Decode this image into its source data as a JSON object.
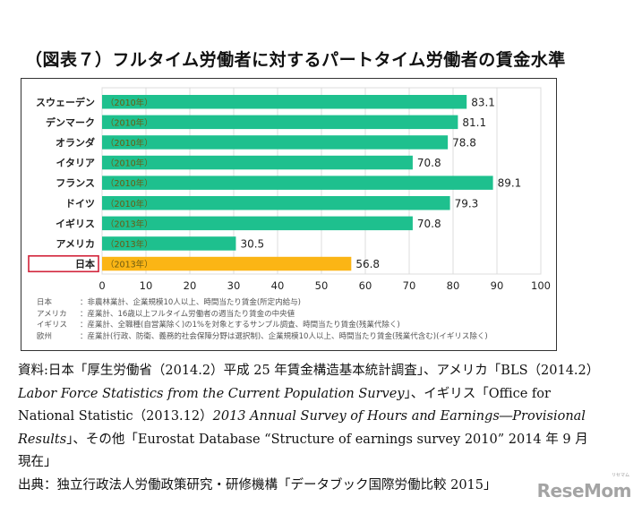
{
  "figure": {
    "title": "（図表７）フルタイム労働者に対するパートタイム労働者の賃金水準"
  },
  "chart_data": {
    "type": "bar",
    "orientation": "horizontal",
    "title": "（図表７）フルタイム労働者に対するパートタイム労働者の賃金水準",
    "xlabel": "",
    "ylabel": "",
    "xlim": [
      0,
      100
    ],
    "xticks": [
      0,
      10,
      20,
      30,
      40,
      50,
      60,
      70,
      80,
      90,
      100
    ],
    "grid": true,
    "categories": [
      "スウェーデン",
      "デンマーク",
      "オランダ",
      "イタリア",
      "フランス",
      "ドイツ",
      "イギリス",
      "アメリカ",
      "日本"
    ],
    "years": [
      "（2010年）",
      "（2010年）",
      "（2010年）",
      "（2010年）",
      "（2010年）",
      "（2010年）",
      "（2013年）",
      "（2013年）",
      "（2013年）"
    ],
    "values": [
      83.1,
      81.1,
      78.8,
      70.8,
      89.1,
      79.3,
      70.8,
      30.5,
      56.8
    ],
    "value_labels": [
      "83.1",
      "81.1",
      "78.8",
      "70.8",
      "89.1",
      "79.3",
      "70.8",
      "30.5",
      "56.8"
    ],
    "highlight_category": "日本",
    "colors": {
      "default_bar": "#1ec08e",
      "highlight_bar": "#fbb515",
      "highlight_box": "#d2233a",
      "grid": "#dcdcdc",
      "year_label": "#6a5a10"
    },
    "notes": [
      {
        "key": "日本",
        "text": "：非農林業計、企業規模10人以上、時間当たり賃金(所定内給与)"
      },
      {
        "key": "アメリカ",
        "text": "：産業計、16歳以上フルタイム労働者の週当たり賃金の中央値"
      },
      {
        "key": "イギリス",
        "text": "：産業計、全職種(自営業除く)の1%を対象とするサンプル調査、時間当たり賃金(残業代除く)"
      },
      {
        "key": "欧州",
        "text": "：産業計(行政、防衛、義務的社会保障分野は選択制)、企業規模10人以上、時間当たり賃金(残業代含む)(イギリス除く)"
      }
    ]
  },
  "source": {
    "line1": "資料:日本「厚生労働省（2014.2）平成 25 年賃金構造基本統計調査」、アメリカ「BLS（2014.2）",
    "line2_italic": "Labor Force Statistics from the Current Population Survey",
    "line2_rest": "」、イギリス「Office for",
    "line3_plain": "National Statistic（2013.12）",
    "line3_italic": "2013 Annual Survey of Hours and Earnings―Provisional",
    "line4_italic": "Results",
    "line4_rest": "」、その他「Eurostat Database “Structure of earnings survey 2010” 2014 年 9 月",
    "line5": "現在」",
    "line6": "出典：独立行政法人労働政策研究・研修機構「データブック国際労働比較 2015」"
  },
  "watermark": {
    "text": "ReseMom",
    "small_text": "リセマム"
  }
}
